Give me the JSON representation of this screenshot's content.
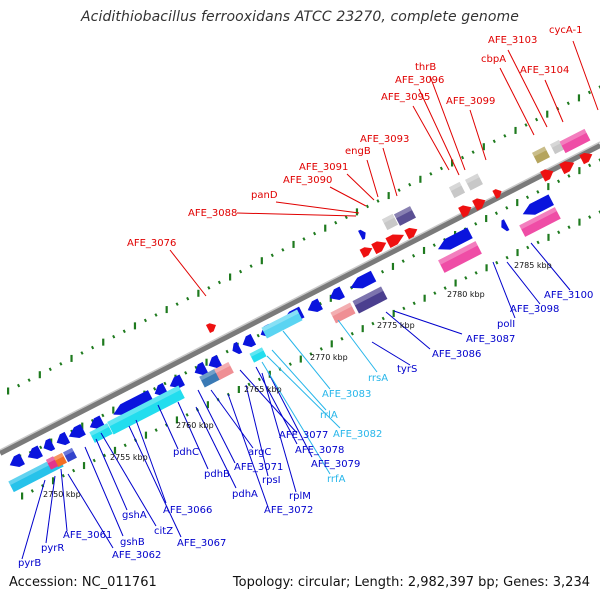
{
  "title": "Acidithiobacillus ferrooxidans ATCC 23270, complete genome",
  "accession": "Accession: NC_011761",
  "summary": "Topology: circular; Length: 2,982,397 bp; Genes: 3,234",
  "colors": {
    "forward_label": "#e00000",
    "reverse_label": "#0000cc",
    "rna_label": "#27b6ea",
    "backbone": "#888888",
    "tick": "#1a7a1a"
  },
  "kbp_labels": [
    "2750 kbp",
    "2755 kbp",
    "2760 kbp",
    "2765 kbp",
    "2770 kbp",
    "2775 kbp",
    "2780 kbp",
    "2785 kbp"
  ],
  "forward_labels": [
    "cycA-1",
    "AFE_3103",
    "AFE_3104",
    "cbpA",
    "thrB",
    "AFE_3096",
    "AFE_3095",
    "AFE_3099",
    "AFE_3093",
    "engB",
    "AFE_3091",
    "AFE_3090",
    "panD",
    "AFE_3088",
    "AFE_3076"
  ],
  "reverse_labels": [
    "AFE_3100",
    "AFE_3098",
    "polI",
    "AFE_3087",
    "AFE_3086",
    "tyrS",
    "AFE_3077",
    "argC",
    "AFE_3078",
    "AFE_3079",
    "rpsI",
    "rplM",
    "AFE_3071",
    "pdhB",
    "pdhA",
    "AFE_3072",
    "pdhC",
    "AFE_3066",
    "AFE_3067",
    "gshA",
    "citZ",
    "gshB",
    "AFE_3061",
    "AFE_3062",
    "pyrR",
    "pyrB"
  ],
  "rna_labels": [
    "rrsA",
    "AFE_3083",
    "rrlA",
    "AFE_3082",
    "rrfA"
  ]
}
